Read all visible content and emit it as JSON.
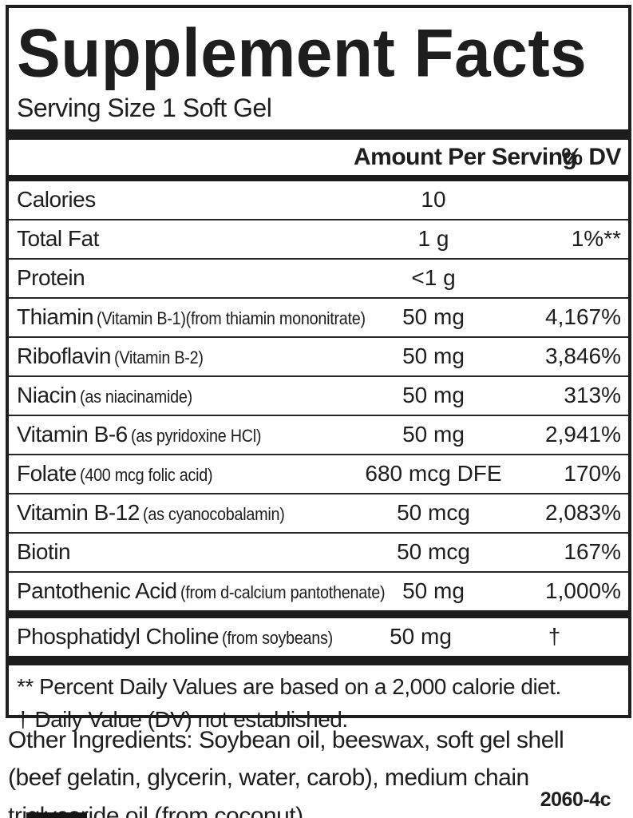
{
  "label": {
    "title": "Supplement Facts",
    "serving_size": "Serving Size 1 Soft Gel",
    "header": {
      "amount": "Amount Per Serving",
      "dv": "% DV"
    },
    "rows": [
      {
        "name": "Calories",
        "sub": "",
        "amount": "10",
        "dv": ""
      },
      {
        "name": "Total Fat",
        "sub": "",
        "amount": "1 g",
        "dv": "1%**"
      },
      {
        "name": "Protein",
        "sub": "",
        "amount": "<1 g",
        "dv": ""
      },
      {
        "name": "Thiamin",
        "sub": "(Vitamin B-1)(from thiamin mononitrate)",
        "amount": "50 mg",
        "dv": "4,167%"
      },
      {
        "name": "Riboflavin",
        "sub": "(Vitamin B-2)",
        "amount": "50 mg",
        "dv": "3,846%"
      },
      {
        "name": "Niacin",
        "sub": "(as niacinamide)",
        "amount": "50 mg",
        "dv": "313%"
      },
      {
        "name": "Vitamin B-6",
        "sub": "(as pyridoxine HCl)",
        "amount": "50 mg",
        "dv": "2,941%"
      },
      {
        "name": "Folate",
        "sub": "(400 mcg folic acid)",
        "amount": "680 mcg DFE",
        "dv": "170%"
      },
      {
        "name": "Vitamin B-12",
        "sub": "(as cyanocobalamin)",
        "amount": "50 mcg",
        "dv": "2,083%"
      },
      {
        "name": "Biotin",
        "sub": "",
        "amount": "50 mcg",
        "dv": "167%"
      },
      {
        "name": "Pantothenic Acid",
        "sub": "(from d-calcium pantothenate)",
        "amount": "50 mg",
        "dv": "1,000%"
      }
    ],
    "separate_rows": [
      {
        "name": "Phosphatidyl Choline",
        "sub": "(from soybeans)",
        "amount": "50 mg",
        "dv": "†",
        "dv_center": true
      }
    ],
    "footnotes": [
      "** Percent Daily Values are based on a 2,000 calorie diet.",
      "† Daily Value (DV) not established."
    ]
  },
  "other_ingredients": {
    "lines": [
      "Other Ingredients:  Soybean oil, beeswax, soft gel shell",
      "(beef gelatin, glycerin, water, carob), medium chain",
      "triglyceride oil (from coconut)."
    ]
  },
  "code": "2060-4c",
  "colors": {
    "ink": "#1e1e1e",
    "background": "#ffffff"
  }
}
